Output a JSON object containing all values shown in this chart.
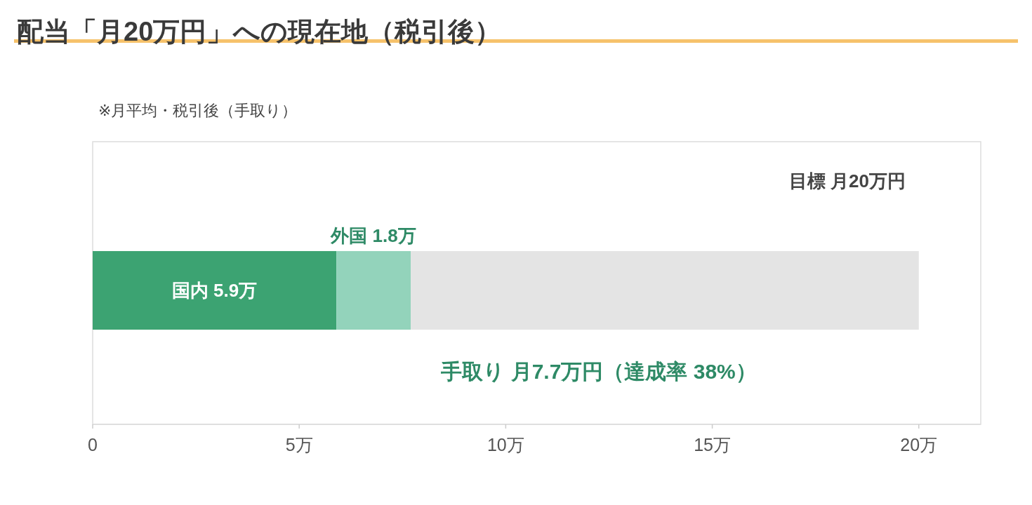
{
  "chart_data": {
    "type": "bar",
    "orientation": "horizontal",
    "stacked": true,
    "title": "配当「月20万円」への現在地（税引後）",
    "subtitle": "※月平均・税引後（手取り）",
    "categories": [
      null
    ],
    "series": [
      {
        "color": "#3ca372",
        "values": [
          5.9
        ],
        "value_labels": [
          "国内 5.9万"
        ]
      },
      {
        "color": "#93d3bb",
        "values": [
          1.8
        ],
        "value_labels": [
          "外国 1.8万"
        ]
      },
      {
        "color": "#e4e4e4",
        "values": [
          12.3
        ]
      }
    ],
    "xlim": [
      0,
      21.5
    ],
    "xticks": [
      0,
      {
        "value": 5,
        "label": "5万"
      },
      {
        "value": 10,
        "label": "10万"
      },
      {
        "value": 15,
        "label": "15万"
      },
      {
        "value": 20,
        "label": "20万"
      }
    ],
    "tick_labels": "x",
    "annotations": [
      "目標 月20万円",
      "手取り 月7.7万円（達成率 38%）"
    ]
  }
}
